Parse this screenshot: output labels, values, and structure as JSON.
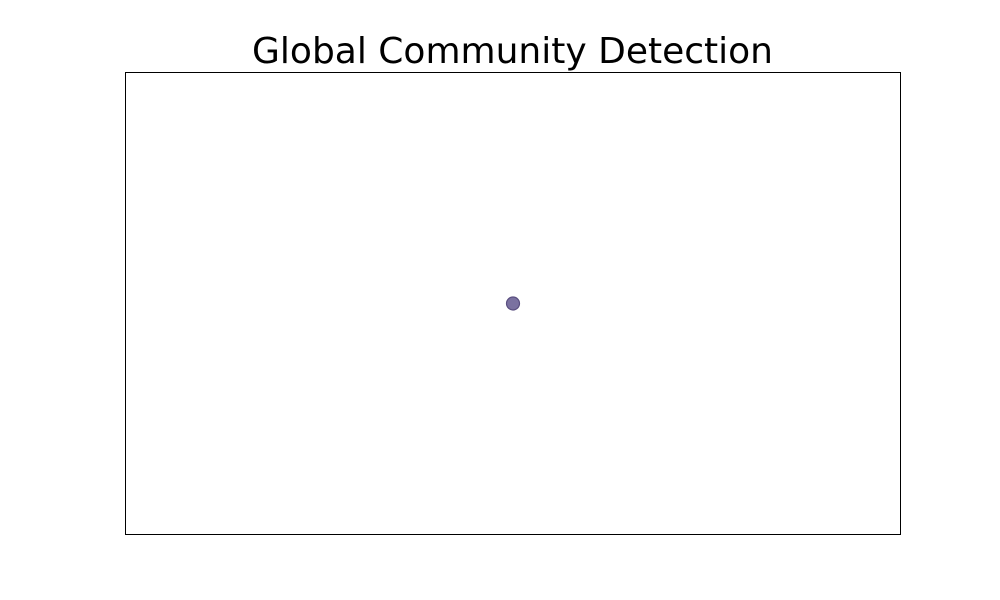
{
  "chart_data": {
    "type": "scatter",
    "title": "Global Community Detection",
    "xlabel": "",
    "ylabel": "",
    "axes_visible": false,
    "grid": false,
    "xlim": [
      -1,
      1
    ],
    "ylim": [
      -1,
      1
    ],
    "series": [
      {
        "color": "#7a71a0",
        "edge_color": "#5a4f80",
        "points": [
          {
            "x": 0,
            "y": 0
          }
        ]
      }
    ]
  }
}
